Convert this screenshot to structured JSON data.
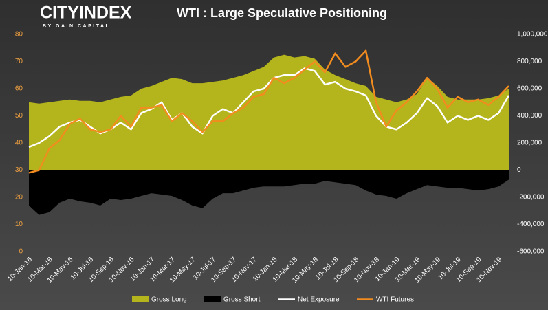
{
  "brand": {
    "name": "CITYINDEX",
    "tagline": "BY GAIN CAPITAL"
  },
  "chart_data": {
    "type": "line",
    "title": "WTI : Large Speculative Positioning",
    "categories": [
      "10-Jan-16",
      null,
      "10-Mar-16",
      null,
      "10-May-16",
      null,
      "10-Jul-16",
      null,
      "10-Sep-16",
      null,
      "10-Nov-16",
      null,
      "10-Jan-17",
      null,
      "10-Mar-17",
      null,
      "10-May-17",
      null,
      "10-Jul-17",
      null,
      "10-Sep-17",
      null,
      "10-Nov-17",
      null,
      "10-Jan-18",
      null,
      "10-Mar-18",
      null,
      "10-May-18",
      null,
      "10-Jul-18",
      null,
      "10-Sep-18",
      null,
      "10-Nov-18",
      null,
      "10-Jan-19",
      null,
      "10-Mar-19",
      null,
      "10-May-19",
      null,
      "10-Jul-19",
      null,
      "10-Sep-19",
      null,
      "10-Nov-19",
      null
    ],
    "ylim": [
      0,
      80
    ],
    "yticks": [
      0,
      10,
      20,
      30,
      40,
      50,
      60,
      70,
      80
    ],
    "y2lim": [
      -600000,
      1000000
    ],
    "y2ticks": [
      {
        "value": -600000,
        "label": "-600,000"
      },
      {
        "value": -400000,
        "label": "-400,000"
      },
      {
        "value": -200000,
        "label": "-200,000"
      },
      0,
      {
        "value": 200000,
        "label": "200,000"
      },
      {
        "value": 400000,
        "label": "400,000"
      },
      {
        "value": 600000,
        "label": "600,000"
      },
      {
        "value": 800000,
        "label": "800,000"
      },
      {
        "value": 1000000,
        "label": "1,000,000"
      }
    ],
    "legend": "bottom",
    "series": [
      {
        "name": "Gross Long",
        "type": "area",
        "axis": "y2",
        "color": "#b4b41c",
        "values": [
          500000,
          490000,
          500000,
          510000,
          520000,
          510000,
          510000,
          500000,
          520000,
          540000,
          550000,
          600000,
          620000,
          650000,
          680000,
          670000,
          640000,
          640000,
          650000,
          660000,
          680000,
          700000,
          730000,
          760000,
          830000,
          850000,
          830000,
          840000,
          820000,
          740000,
          700000,
          670000,
          640000,
          620000,
          540000,
          520000,
          500000,
          520000,
          560000,
          680000,
          620000,
          540000,
          520000,
          520000,
          520000,
          530000,
          550000,
          600000
        ]
      },
      {
        "name": "Gross Short",
        "type": "area",
        "axis": "y2",
        "color": "#000000",
        "values": [
          -260000,
          -330000,
          -310000,
          -240000,
          -210000,
          -230000,
          -240000,
          -260000,
          -210000,
          -220000,
          -210000,
          -190000,
          -170000,
          -180000,
          -190000,
          -220000,
          -260000,
          -280000,
          -210000,
          -170000,
          -170000,
          -150000,
          -130000,
          -120000,
          -120000,
          -120000,
          -110000,
          -100000,
          -100000,
          -80000,
          -90000,
          -100000,
          -110000,
          -150000,
          -180000,
          -190000,
          -210000,
          -170000,
          -140000,
          -110000,
          -120000,
          -130000,
          -130000,
          -140000,
          -150000,
          -140000,
          -120000,
          -70000
        ]
      },
      {
        "name": "Net Exposure",
        "type": "line",
        "axis": "y2",
        "color": "#ffffff",
        "values": [
          170000,
          200000,
          250000,
          320000,
          350000,
          370000,
          320000,
          270000,
          300000,
          350000,
          300000,
          420000,
          450000,
          500000,
          370000,
          420000,
          320000,
          270000,
          400000,
          450000,
          420000,
          500000,
          580000,
          600000,
          680000,
          700000,
          700000,
          750000,
          730000,
          630000,
          650000,
          600000,
          580000,
          550000,
          400000,
          320000,
          300000,
          350000,
          420000,
          530000,
          470000,
          350000,
          400000,
          370000,
          400000,
          370000,
          420000,
          550000
        ]
      },
      {
        "name": "WTI Futures",
        "type": "line",
        "axis": "y",
        "color": "#f28c1e",
        "values": [
          29,
          30,
          38,
          41,
          47,
          49,
          45,
          44,
          45,
          50,
          46,
          53,
          53,
          54,
          48,
          51,
          48,
          44,
          48,
          48,
          51,
          53,
          57,
          58,
          64,
          62,
          64,
          67,
          70,
          66,
          73,
          68,
          70,
          74,
          55,
          46,
          52,
          55,
          59,
          64,
          60,
          53,
          57,
          55,
          56,
          54,
          57,
          61
        ]
      }
    ]
  }
}
